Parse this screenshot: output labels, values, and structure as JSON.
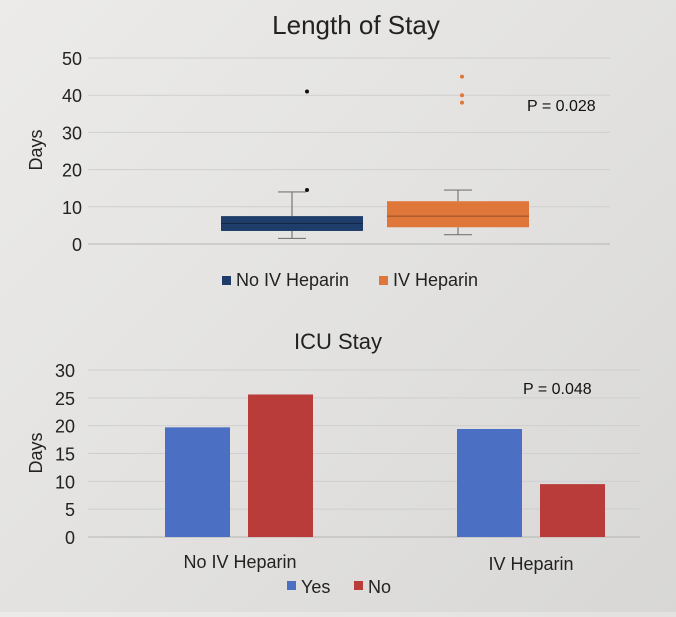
{
  "chart_data": [
    {
      "type": "box",
      "title": "Length of Stay",
      "ylabel": "Days",
      "ylim": [
        0,
        50
      ],
      "yticks": [
        "0",
        "10",
        "20",
        "30",
        "40",
        "50"
      ],
      "legend_position": "bottom",
      "annotation": "P = 0.028",
      "series": [
        {
          "name": "No IV Heparin",
          "color": "#1f3d6b",
          "min": 1.5,
          "q1": 3.5,
          "median": 5.5,
          "q3": 7.5,
          "max": 14,
          "outliers": [
            14.5,
            41
          ]
        },
        {
          "name": "IV Heparin",
          "color": "#e0773a",
          "min": 2.5,
          "q1": 4.5,
          "median": 7.5,
          "q3": 11.5,
          "max": 14.5,
          "outliers": [
            38,
            40,
            45
          ]
        }
      ]
    },
    {
      "type": "bar",
      "title": "ICU Stay",
      "ylabel": "Days",
      "ylim": [
        0,
        30
      ],
      "yticks": [
        "0",
        "5",
        "10",
        "15",
        "20",
        "25",
        "30"
      ],
      "categories": [
        "No IV Heparin",
        "IV Heparin"
      ],
      "legend_position": "bottom",
      "annotation": "P = 0.048",
      "series": [
        {
          "name": "Yes",
          "color": "#4a6fc3",
          "values": [
            19.7,
            19.4
          ]
        },
        {
          "name": "No",
          "color": "#b93c3a",
          "values": [
            25.6,
            9.5
          ]
        }
      ]
    }
  ]
}
